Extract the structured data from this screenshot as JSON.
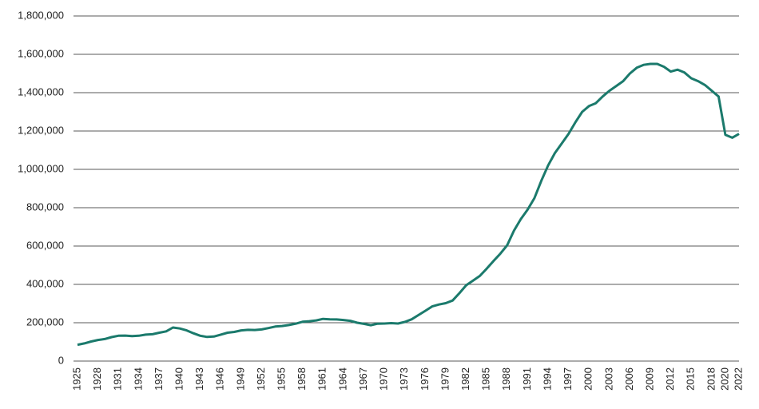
{
  "chart_data": {
    "type": "line",
    "x": [
      1925,
      1926,
      1927,
      1928,
      1929,
      1930,
      1931,
      1932,
      1933,
      1934,
      1935,
      1936,
      1937,
      1938,
      1939,
      1940,
      1941,
      1942,
      1943,
      1944,
      1945,
      1946,
      1947,
      1948,
      1949,
      1950,
      1951,
      1952,
      1953,
      1954,
      1955,
      1956,
      1957,
      1958,
      1959,
      1960,
      1961,
      1962,
      1963,
      1964,
      1965,
      1966,
      1967,
      1968,
      1969,
      1970,
      1971,
      1972,
      1973,
      1974,
      1975,
      1976,
      1977,
      1978,
      1979,
      1980,
      1981,
      1982,
      1983,
      1984,
      1985,
      1986,
      1987,
      1988,
      1989,
      1990,
      1991,
      1992,
      1993,
      1994,
      1995,
      1996,
      1997,
      1998,
      1999,
      2000,
      2001,
      2002,
      2003,
      2004,
      2005,
      2006,
      2007,
      2008,
      2009,
      2010,
      2011,
      2012,
      2013,
      2014,
      2015,
      2016,
      2017,
      2018,
      2019,
      2020,
      2021,
      2022
    ],
    "series": [
      {
        "color": "#1b7a6c",
        "values": [
          85000,
          92000,
          102000,
          110000,
          115000,
          125000,
          132000,
          133000,
          130000,
          132000,
          138000,
          140000,
          148000,
          155000,
          175000,
          170000,
          160000,
          145000,
          132000,
          126000,
          128000,
          138000,
          148000,
          152000,
          160000,
          163000,
          162000,
          165000,
          172000,
          180000,
          183000,
          188000,
          195000,
          205000,
          208000,
          212000,
          220000,
          218000,
          217000,
          214000,
          210000,
          200000,
          194000,
          187000,
          195000,
          196000,
          198000,
          196000,
          204000,
          218000,
          240000,
          262000,
          285000,
          295000,
          302000,
          316000,
          354000,
          396000,
          420000,
          444000,
          482000,
          522000,
          560000,
          604000,
          680000,
          740000,
          790000,
          850000,
          940000,
          1020000,
          1085000,
          1135000,
          1185000,
          1245000,
          1300000,
          1330000,
          1345000,
          1380000,
          1410000,
          1435000,
          1460000,
          1500000,
          1530000,
          1545000,
          1550000,
          1550000,
          1535000,
          1510000,
          1520000,
          1505000,
          1475000,
          1460000,
          1440000,
          1410000,
          1380000,
          1180000,
          1165000,
          1185000
        ]
      }
    ],
    "xlim": [
      1925,
      2022
    ],
    "xticks": [
      1925,
      1928,
      1931,
      1934,
      1937,
      1940,
      1943,
      1946,
      1949,
      1952,
      1955,
      1958,
      1961,
      1964,
      1967,
      1970,
      1973,
      1976,
      1979,
      1982,
      1985,
      1988,
      1991,
      1994,
      1997,
      2000,
      2003,
      2006,
      2009,
      2012,
      2015,
      2018,
      2020,
      2022
    ],
    "ylim": [
      0,
      1800000
    ],
    "yticks": [
      0,
      {
        "value": 200000,
        "label": "200,000"
      },
      {
        "value": 400000,
        "label": "400,000"
      },
      {
        "value": 600000,
        "label": "600,000"
      },
      {
        "value": 800000,
        "label": "800,000"
      },
      {
        "value": 1000000,
        "label": "1,000,000"
      },
      {
        "value": 1200000,
        "label": "1,200,000"
      },
      {
        "value": 1400000,
        "label": "1,400,000"
      },
      {
        "value": 1600000,
        "label": "1,600,000"
      },
      {
        "value": 1800000,
        "label": "1,800,000"
      }
    ],
    "grid": true
  }
}
